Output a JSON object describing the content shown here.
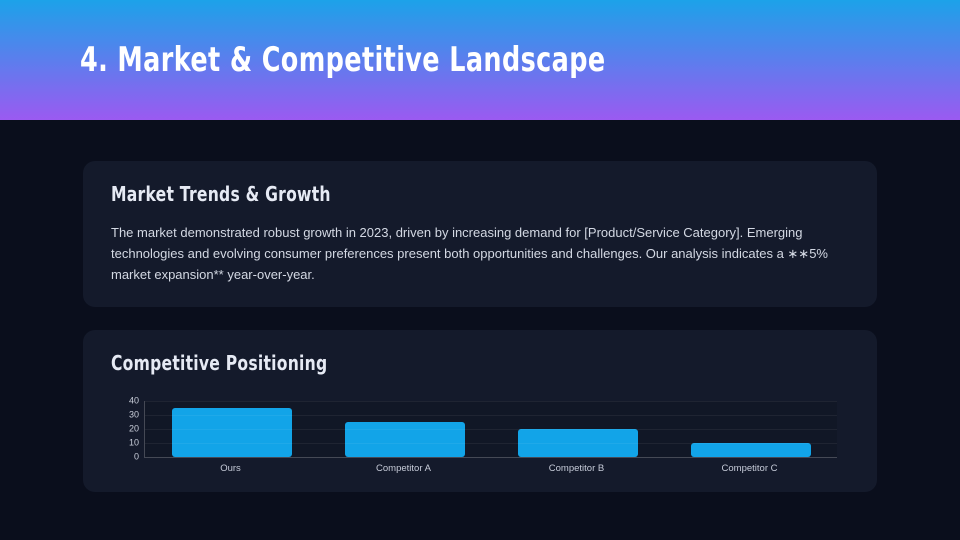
{
  "header": {
    "title": "4. Market & Competitive Landscape",
    "gradient_top": "#1ca2e9",
    "gradient_bottom": "#9b5af1"
  },
  "cards": [
    {
      "title": "Market Trends & Growth",
      "body": "The market demonstrated robust growth in 2023, driven by increasing demand for [Product/Service Category]. Emerging technologies and evolving consumer preferences present both opportunities and challenges. Our analysis indicates a ∗∗5% market expansion** year-over-year."
    },
    {
      "title": "Competitive Positioning"
    }
  ],
  "chart_data": {
    "type": "bar",
    "title": "Competitive Positioning",
    "categories": [
      "Ours",
      "Competitor A",
      "Competitor B",
      "Competitor C"
    ],
    "values": [
      35,
      25,
      20,
      10
    ],
    "xlabel": "",
    "ylabel": "",
    "ylim": [
      0,
      40
    ],
    "yticks": [
      40,
      30,
      20,
      10,
      0
    ],
    "grid": true,
    "legend": false,
    "bar_color": "#12a4e8"
  },
  "colors": {
    "page_background": "#0a0e1c",
    "card_background": "#141a2b",
    "accent_bar": "#12a4e8",
    "body_text": "#d3d8e3"
  }
}
